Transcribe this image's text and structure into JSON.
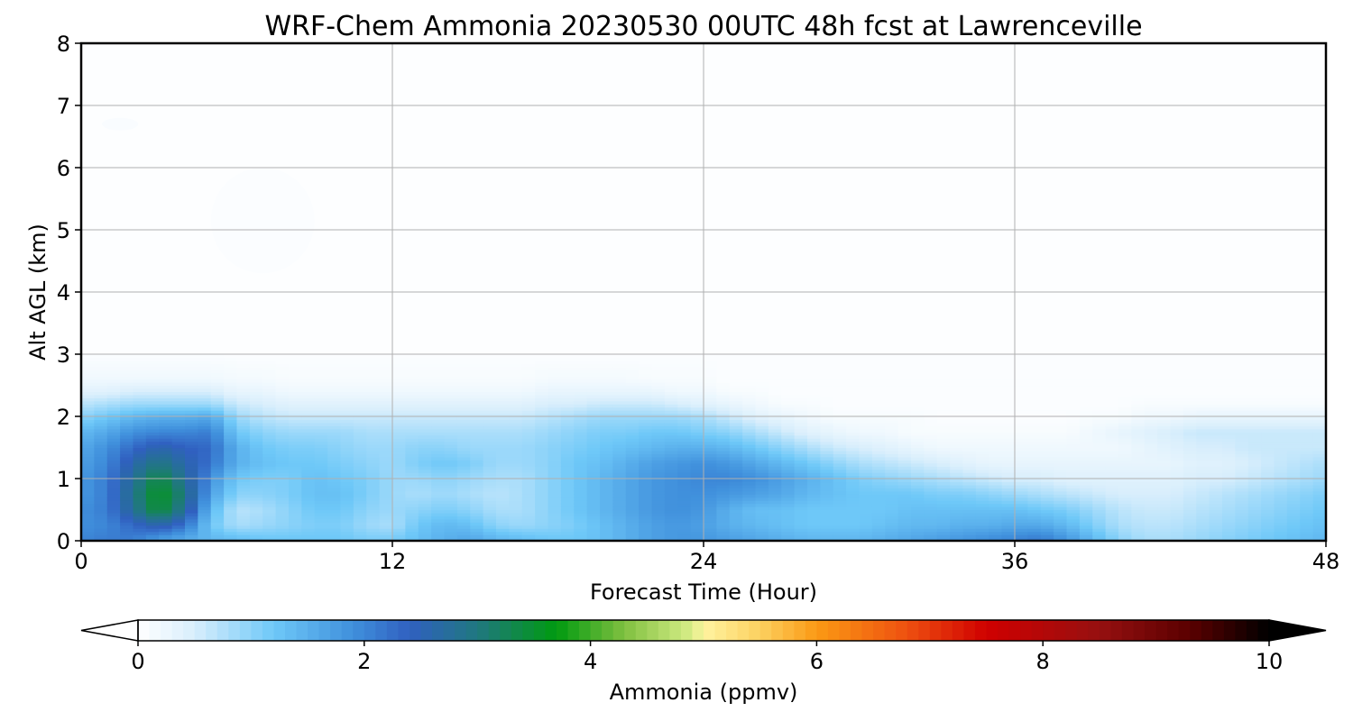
{
  "chart_data": {
    "type": "contour",
    "title": "WRF-Chem Ammonia  20230530 00UTC 48h fcst at Lawrenceville",
    "xlabel": "Forecast Time (Hour)",
    "ylabel": "Alt AGL (km)",
    "xlim": [
      0,
      48
    ],
    "ylim": [
      0,
      8
    ],
    "x_ticks": [
      "0",
      "12",
      "24",
      "36",
      "48"
    ],
    "y_ticks": [
      "0",
      "1",
      "2",
      "3",
      "4",
      "5",
      "6",
      "7",
      "8"
    ],
    "grid": true,
    "field": {
      "name": "Ammonia",
      "units": "ppmv",
      "x_hours": [
        0,
        1,
        2,
        3,
        4,
        5,
        6,
        7,
        8,
        9,
        10,
        11,
        12,
        13,
        14,
        15,
        16,
        17,
        18,
        19,
        20,
        21,
        22,
        23,
        24,
        25,
        26,
        27,
        28,
        29,
        30,
        31,
        32,
        33,
        34,
        35,
        36,
        37,
        38,
        39,
        40,
        41,
        42,
        43,
        44,
        45,
        46,
        47,
        48
      ],
      "y_km": [
        0.05,
        0.25,
        0.5,
        0.75,
        1.0,
        1.25,
        1.5,
        1.75,
        2.0,
        2.2,
        2.4,
        2.6,
        3.0
      ],
      "values_ppmv": [
        [
          2.0,
          2.1,
          2.1,
          1.8,
          1.6,
          1.4,
          1.3,
          1.2,
          1.2,
          1.2,
          1.2,
          1.1,
          1.1,
          1.3,
          1.5,
          1.6,
          1.4,
          1.3,
          1.2,
          1.2,
          1.3,
          1.5,
          1.7,
          1.8,
          1.8,
          1.7,
          1.6,
          1.5,
          1.4,
          1.4,
          1.4,
          1.5,
          1.6,
          1.7,
          1.8,
          1.9,
          2.0,
          2.1,
          1.8,
          1.4,
          1.0,
          0.8,
          0.8,
          0.9,
          1.0,
          1.1,
          1.2,
          1.3,
          1.4
        ],
        [
          1.9,
          2.0,
          2.3,
          2.6,
          2.2,
          1.2,
          0.8,
          0.9,
          1.0,
          1.1,
          1.1,
          0.9,
          0.8,
          1.2,
          1.4,
          1.3,
          1.0,
          0.9,
          1.0,
          1.1,
          1.3,
          1.5,
          1.7,
          1.8,
          1.7,
          1.5,
          1.4,
          1.3,
          1.2,
          1.2,
          1.2,
          1.3,
          1.4,
          1.4,
          1.5,
          1.5,
          1.6,
          1.6,
          1.4,
          1.1,
          0.8,
          0.7,
          0.7,
          0.8,
          0.9,
          1.0,
          1.1,
          1.2,
          1.3
        ],
        [
          1.9,
          2.1,
          2.8,
          3.5,
          2.8,
          1.4,
          0.7,
          0.8,
          1.0,
          1.2,
          1.2,
          1.0,
          0.9,
          1.0,
          1.1,
          1.0,
          0.8,
          0.8,
          1.0,
          1.2,
          1.4,
          1.6,
          1.8,
          1.9,
          1.8,
          1.5,
          1.3,
          1.3,
          1.2,
          1.2,
          1.2,
          1.2,
          1.3,
          1.3,
          1.3,
          1.3,
          1.3,
          1.2,
          1.1,
          0.9,
          0.7,
          0.6,
          0.6,
          0.7,
          0.8,
          0.9,
          1.0,
          1.1,
          1.2
        ],
        [
          1.8,
          2.1,
          2.9,
          3.6,
          3.0,
          1.7,
          1.0,
          1.0,
          1.1,
          1.3,
          1.3,
          1.1,
          0.9,
          0.8,
          0.9,
          0.8,
          0.7,
          0.8,
          1.0,
          1.2,
          1.4,
          1.6,
          1.8,
          1.9,
          1.9,
          1.8,
          1.7,
          1.6,
          1.4,
          1.3,
          1.2,
          1.2,
          1.2,
          1.1,
          1.1,
          1.0,
          0.9,
          0.8,
          0.7,
          0.6,
          0.5,
          0.5,
          0.5,
          0.6,
          0.7,
          0.8,
          0.9,
          1.0,
          1.1
        ],
        [
          1.8,
          2.1,
          2.8,
          3.4,
          2.8,
          1.9,
          1.2,
          1.1,
          1.1,
          1.3,
          1.2,
          1.1,
          0.9,
          0.9,
          1.0,
          0.9,
          0.8,
          0.8,
          1.0,
          1.2,
          1.4,
          1.6,
          1.8,
          1.9,
          2.0,
          2.0,
          1.9,
          1.7,
          1.5,
          1.3,
          1.1,
          1.0,
          0.9,
          0.8,
          0.7,
          0.6,
          0.5,
          0.5,
          0.4,
          0.4,
          0.4,
          0.4,
          0.4,
          0.5,
          0.5,
          0.6,
          0.7,
          0.8,
          0.9
        ],
        [
          1.7,
          2.0,
          2.6,
          3.0,
          2.6,
          2.2,
          1.5,
          1.3,
          1.2,
          1.2,
          1.1,
          1.0,
          0.9,
          1.1,
          1.2,
          1.1,
          0.9,
          0.9,
          1.0,
          1.2,
          1.3,
          1.5,
          1.7,
          1.8,
          1.9,
          1.8,
          1.6,
          1.4,
          1.2,
          1.0,
          0.8,
          0.7,
          0.6,
          0.5,
          0.4,
          0.3,
          0.3,
          0.3,
          0.3,
          0.3,
          0.3,
          0.3,
          0.3,
          0.4,
          0.4,
          0.5,
          0.6,
          0.7,
          0.8
        ],
        [
          1.6,
          1.9,
          2.3,
          2.6,
          2.4,
          2.3,
          1.5,
          1.2,
          1.1,
          1.1,
          1.0,
          0.9,
          0.9,
          1.0,
          1.0,
          0.9,
          0.9,
          0.9,
          1.0,
          1.1,
          1.2,
          1.3,
          1.4,
          1.5,
          1.5,
          1.4,
          1.2,
          1.0,
          0.8,
          0.6,
          0.5,
          0.4,
          0.3,
          0.2,
          0.2,
          0.2,
          0.2,
          0.2,
          0.2,
          0.2,
          0.2,
          0.3,
          0.4,
          0.5,
          0.5,
          0.6,
          0.6,
          0.6,
          0.6
        ],
        [
          1.4,
          1.6,
          1.9,
          2.0,
          2.0,
          2.1,
          1.2,
          1.0,
          0.9,
          0.9,
          0.9,
          0.8,
          0.8,
          0.8,
          0.8,
          0.8,
          0.8,
          0.8,
          0.9,
          1.0,
          1.1,
          1.1,
          1.2,
          1.2,
          1.1,
          1.0,
          0.8,
          0.6,
          0.4,
          0.3,
          0.2,
          0.2,
          0.1,
          0.1,
          0.1,
          0.1,
          0.1,
          0.1,
          0.1,
          0.2,
          0.3,
          0.4,
          0.5,
          0.6,
          0.6,
          0.6,
          0.6,
          0.6,
          0.6
        ],
        [
          1.0,
          1.2,
          1.4,
          1.5,
          1.5,
          1.6,
          0.9,
          0.7,
          0.6,
          0.6,
          0.6,
          0.6,
          0.6,
          0.6,
          0.6,
          0.6,
          0.6,
          0.6,
          0.7,
          0.8,
          0.9,
          0.9,
          0.9,
          0.9,
          0.8,
          0.6,
          0.4,
          0.3,
          0.2,
          0.1,
          0.1,
          0.1,
          0.1,
          0.05,
          0.05,
          0.05,
          0.05,
          0.05,
          0.05,
          0.1,
          0.1,
          0.2,
          0.2,
          0.3,
          0.3,
          0.3,
          0.3,
          0.3,
          0.3
        ],
        [
          0.7,
          0.8,
          0.9,
          0.9,
          0.9,
          0.9,
          0.6,
          0.5,
          0.4,
          0.4,
          0.4,
          0.4,
          0.4,
          0.4,
          0.4,
          0.4,
          0.4,
          0.4,
          0.5,
          0.5,
          0.6,
          0.6,
          0.6,
          0.5,
          0.4,
          0.3,
          0.2,
          0.1,
          0.1,
          0.05,
          0.05,
          0.05,
          0.05,
          0.05,
          0.05,
          0.05,
          0.05,
          0.05,
          0.05,
          0.05,
          0.05,
          0.1,
          0.1,
          0.1,
          0.1,
          0.1,
          0.1,
          0.1,
          0.1
        ],
        [
          0.4,
          0.4,
          0.5,
          0.5,
          0.5,
          0.5,
          0.3,
          0.3,
          0.2,
          0.2,
          0.2,
          0.2,
          0.2,
          0.2,
          0.2,
          0.2,
          0.2,
          0.2,
          0.3,
          0.3,
          0.3,
          0.3,
          0.3,
          0.2,
          0.2,
          0.1,
          0.1,
          0.05,
          0.05,
          0.05,
          0.05,
          0.05,
          0.05,
          0.05,
          0.05,
          0.05,
          0.05,
          0.05,
          0.05,
          0.05,
          0.05,
          0.05,
          0.05,
          0.05,
          0.05,
          0.05,
          0.05,
          0.05,
          0.05
        ],
        [
          0.2,
          0.2,
          0.2,
          0.2,
          0.2,
          0.2,
          0.15,
          0.15,
          0.1,
          0.1,
          0.1,
          0.1,
          0.1,
          0.1,
          0.1,
          0.1,
          0.1,
          0.1,
          0.15,
          0.15,
          0.15,
          0.15,
          0.1,
          0.1,
          0.1,
          0.05,
          0.05,
          0.05,
          0.05,
          0.05,
          0.05,
          0.05,
          0.05,
          0.05,
          0.05,
          0.05,
          0.05,
          0.05,
          0.05,
          0.05,
          0.05,
          0.05,
          0.05,
          0.05,
          0.05,
          0.05,
          0.05,
          0.05,
          0.05
        ],
        [
          0.05,
          0.05,
          0.05,
          0.05,
          0.05,
          0.05,
          0.05,
          0.05,
          0.05,
          0.05,
          0.05,
          0.05,
          0.05,
          0.05,
          0.05,
          0.05,
          0.05,
          0.05,
          0.05,
          0.05,
          0.05,
          0.05,
          0.05,
          0.05,
          0.05,
          0.05,
          0.05,
          0.05,
          0.05,
          0.05,
          0.05,
          0.05,
          0.05,
          0.05,
          0.05,
          0.05,
          0.05,
          0.05,
          0.05,
          0.05,
          0.05,
          0.05,
          0.05,
          0.05,
          0.05,
          0.05,
          0.05,
          0.05,
          0.05
        ]
      ],
      "background_value_ppmv": 0.03,
      "upper_patches": [
        {
          "name": "patch-1",
          "hour_range": [
            0.8,
            2.2
          ],
          "km_range": [
            6.6,
            6.8
          ],
          "value_ppmv": 0.08
        },
        {
          "name": "patch-2",
          "hour_range": [
            5.0,
            9.0
          ],
          "km_range": [
            4.3,
            6.0
          ],
          "value_ppmv": 0.05
        }
      ]
    },
    "colorbar": {
      "label": "Ammonia  (ppmv)",
      "ticks": [
        "0",
        "2",
        "4",
        "6",
        "8",
        "10"
      ],
      "range": [
        0,
        10
      ],
      "extend": "both",
      "colors": [
        {
          "v": 0.0,
          "c": "#ffffff"
        },
        {
          "v": 0.5,
          "c": "#d8eefc"
        },
        {
          "v": 1.2,
          "c": "#6ec8f8"
        },
        {
          "v": 1.9,
          "c": "#4090dc"
        },
        {
          "v": 2.4,
          "c": "#3060c0"
        },
        {
          "v": 3.0,
          "c": "#207880"
        },
        {
          "v": 3.7,
          "c": "#009a10"
        },
        {
          "v": 4.3,
          "c": "#80c040"
        },
        {
          "v": 4.9,
          "c": "#d8ee88"
        },
        {
          "v": 5.0,
          "c": "#fff4a0"
        },
        {
          "v": 5.5,
          "c": "#fcd060"
        },
        {
          "v": 6.0,
          "c": "#fb9a14"
        },
        {
          "v": 6.8,
          "c": "#ee5010"
        },
        {
          "v": 7.5,
          "c": "#d00000"
        },
        {
          "v": 8.5,
          "c": "#961010"
        },
        {
          "v": 9.3,
          "c": "#5a0000"
        },
        {
          "v": 10.0,
          "c": "#000000"
        }
      ]
    }
  }
}
